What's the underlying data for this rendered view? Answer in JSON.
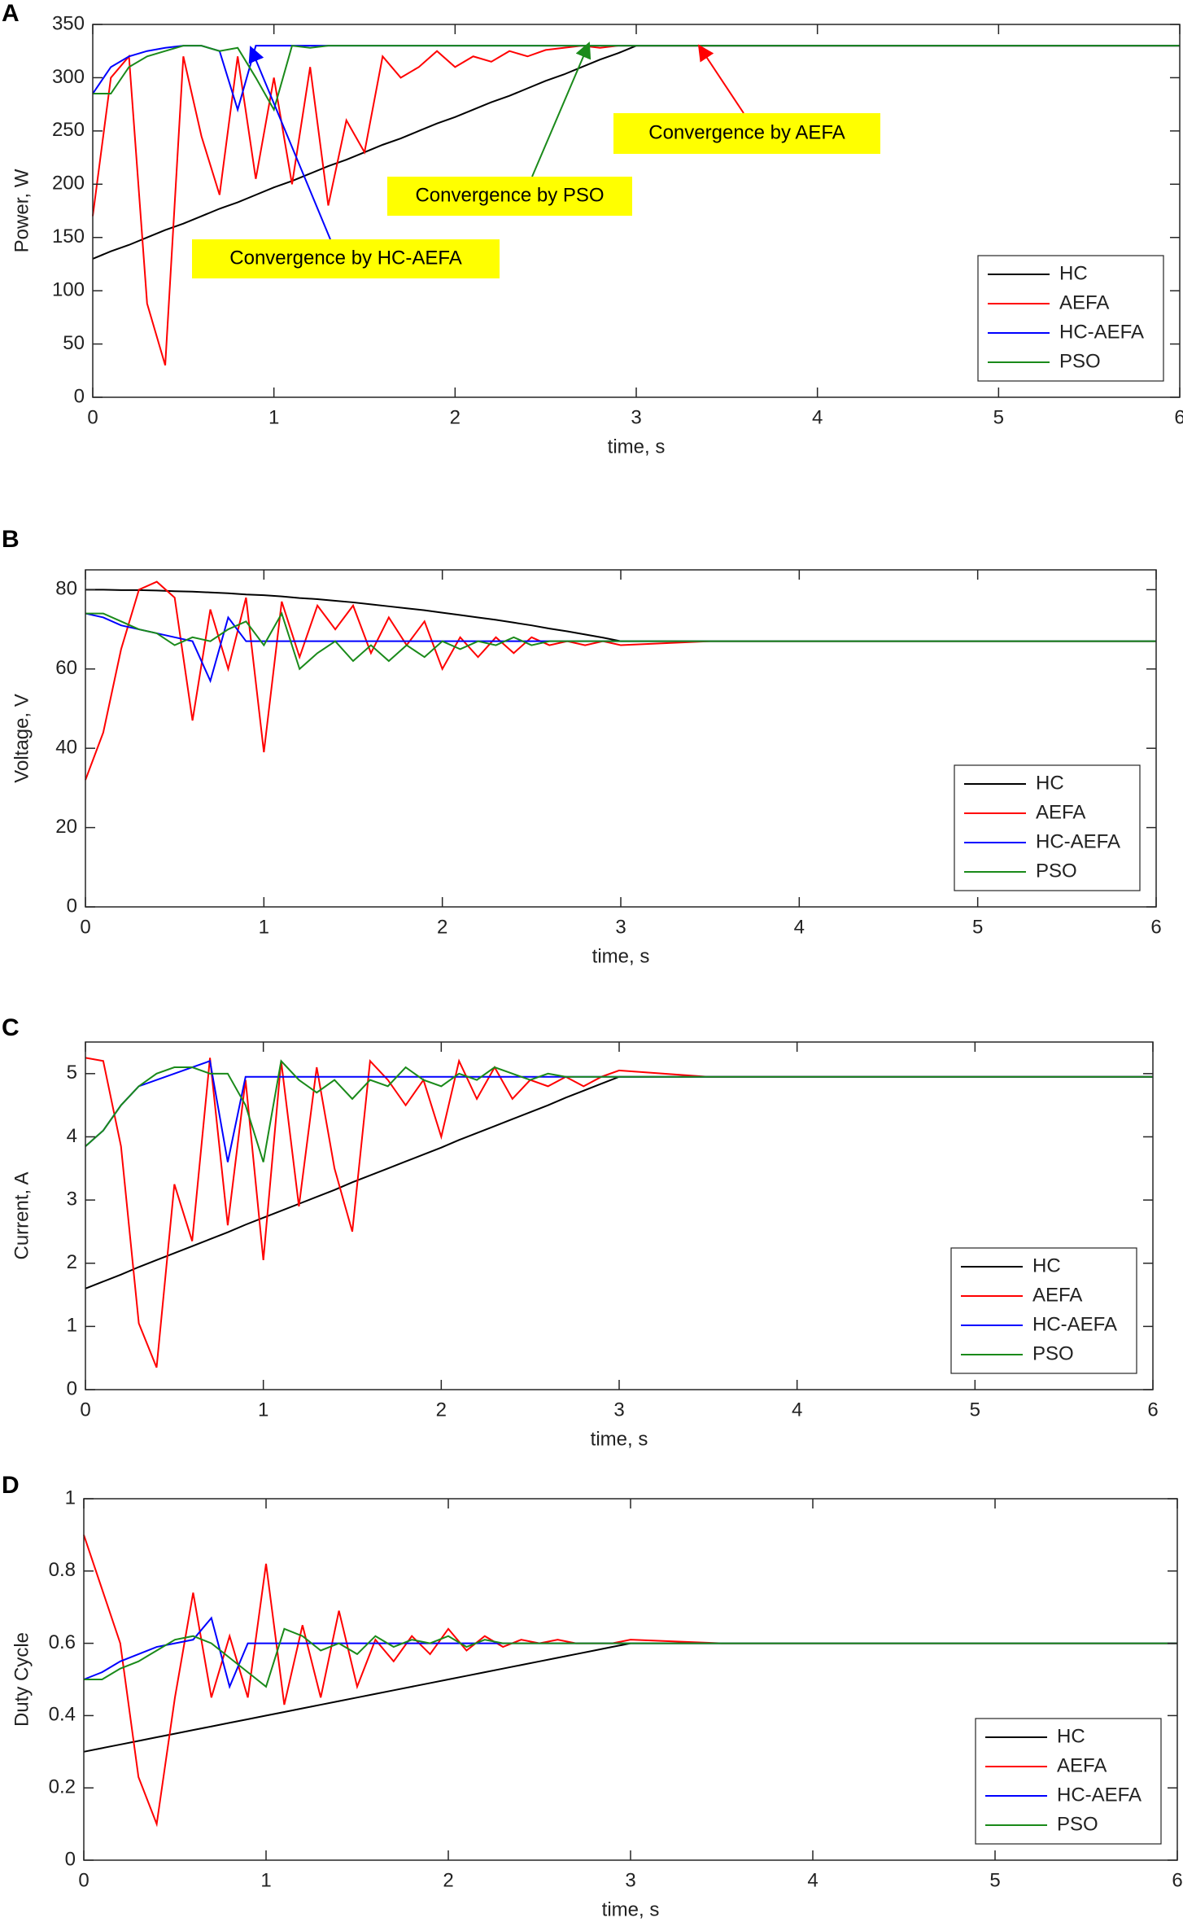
{
  "chart_data": [
    {
      "type": "line",
      "panel": "A",
      "xlabel": "time, s",
      "ylabel": "Power, W",
      "x": [
        0,
        0.1,
        0.2,
        0.3,
        0.4,
        0.5,
        0.6,
        0.7,
        0.8,
        0.9,
        1,
        1.1,
        1.2,
        1.3,
        1.4,
        1.5,
        1.6,
        1.7,
        1.8,
        1.9,
        2,
        2.1,
        2.2,
        2.3,
        2.4,
        2.5,
        2.6,
        2.7,
        2.8,
        2.9,
        3,
        3.5,
        4,
        4.5,
        5,
        5.5,
        6
      ],
      "xlim": [
        0,
        6
      ],
      "xticks": [
        0,
        1,
        2,
        3,
        4,
        5,
        6
      ],
      "ylim": [
        0,
        350
      ],
      "yticks": [
        0,
        50,
        100,
        150,
        200,
        250,
        300,
        350
      ],
      "legend": "lower right",
      "series": [
        {
          "name": "HC",
          "color": "#000000",
          "values": [
            130,
            137,
            143,
            150,
            157,
            163,
            170,
            177,
            183,
            190,
            197,
            203,
            210,
            217,
            223,
            230,
            237,
            243,
            250,
            257,
            263,
            270,
            277,
            283,
            290,
            297,
            303,
            310,
            317,
            323,
            330,
            330,
            330,
            330,
            330,
            330,
            330
          ]
        },
        {
          "name": "AEFA",
          "color": "#ff0000",
          "values": [
            170,
            300,
            320,
            88,
            30,
            320,
            245,
            190,
            320,
            205,
            300,
            200,
            310,
            180,
            260,
            230,
            320,
            300,
            310,
            325,
            310,
            320,
            315,
            325,
            320,
            326,
            328,
            330,
            328,
            330,
            330,
            330,
            330,
            330,
            330,
            330,
            330
          ]
        },
        {
          "name": "HC-AEFA",
          "color": "#0000ff",
          "values": [
            285,
            310,
            320,
            325,
            328,
            330,
            330,
            325,
            270,
            330,
            330,
            330,
            330,
            330,
            330,
            330,
            330,
            330,
            330,
            330,
            330,
            330,
            330,
            330,
            330,
            330,
            330,
            330,
            330,
            330,
            330,
            330,
            330,
            330,
            330,
            330,
            330
          ]
        },
        {
          "name": "PSO",
          "color": "#1a8a1a",
          "values": [
            285,
            285,
            310,
            320,
            325,
            330,
            330,
            325,
            328,
            300,
            270,
            330,
            328,
            330,
            330,
            330,
            330,
            330,
            330,
            330,
            330,
            330,
            330,
            330,
            330,
            330,
            330,
            330,
            330,
            330,
            330,
            330,
            330,
            330,
            330,
            330,
            330
          ]
        }
      ],
      "annotations": [
        "Convergence by AEFA",
        "Convergence by PSO",
        "Convergence by HC-AEFA"
      ]
    },
    {
      "type": "line",
      "panel": "B",
      "xlabel": "time, s",
      "ylabel": "Voltage, V",
      "x": [
        0,
        0.1,
        0.2,
        0.3,
        0.4,
        0.5,
        0.6,
        0.7,
        0.8,
        0.9,
        1,
        1.1,
        1.2,
        1.3,
        1.4,
        1.5,
        1.6,
        1.7,
        1.8,
        1.9,
        2,
        2.1,
        2.2,
        2.3,
        2.4,
        2.5,
        2.6,
        2.7,
        2.8,
        2.9,
        3,
        3.5,
        4,
        4.5,
        5,
        5.5,
        6
      ],
      "xlim": [
        0,
        6
      ],
      "xticks": [
        0,
        1,
        2,
        3,
        4,
        5,
        6
      ],
      "ylim": [
        0,
        85
      ],
      "yticks": [
        0,
        20,
        40,
        60,
        80
      ],
      "legend": "lower right",
      "series": [
        {
          "name": "HC",
          "color": "#000000",
          "values": [
            80,
            80,
            79.9,
            79.9,
            79.8,
            79.6,
            79.5,
            79.3,
            79.1,
            78.8,
            78.6,
            78.3,
            77.9,
            77.6,
            77.2,
            76.8,
            76.3,
            75.8,
            75.3,
            74.8,
            74.2,
            73.6,
            73,
            72.4,
            71.7,
            71,
            70.2,
            69.5,
            68.7,
            67.9,
            67,
            67,
            67,
            67,
            67,
            67,
            67
          ]
        },
        {
          "name": "AEFA",
          "color": "#ff0000",
          "values": [
            32,
            44,
            65,
            80,
            82,
            78,
            47,
            75,
            60,
            78,
            39,
            77,
            63,
            76,
            70,
            76,
            64,
            73,
            66,
            72,
            60,
            68,
            63,
            68,
            64,
            68,
            66,
            67,
            66,
            67,
            66,
            67,
            67,
            67,
            67,
            67,
            67
          ]
        },
        {
          "name": "HC-AEFA",
          "color": "#0000ff",
          "values": [
            74,
            73,
            71,
            70,
            69,
            68,
            67,
            57,
            73,
            67,
            67,
            67,
            67,
            67,
            67,
            67,
            67,
            67,
            67,
            67,
            67,
            67,
            67,
            67,
            67,
            67,
            67,
            67,
            67,
            67,
            67,
            67,
            67,
            67,
            67,
            67,
            67
          ]
        },
        {
          "name": "PSO",
          "color": "#1a8a1a",
          "values": [
            74,
            74,
            72,
            70,
            69,
            66,
            68,
            67,
            70,
            72,
            66,
            74,
            60,
            64,
            67,
            62,
            66,
            62,
            66,
            63,
            67,
            65,
            67,
            66,
            68,
            66,
            67,
            67,
            67,
            67,
            67,
            67,
            67,
            67,
            67,
            67,
            67
          ]
        }
      ]
    },
    {
      "type": "line",
      "panel": "C",
      "xlabel": "time, s",
      "ylabel": "Current, A",
      "x": [
        0,
        0.1,
        0.2,
        0.3,
        0.4,
        0.5,
        0.6,
        0.7,
        0.8,
        0.9,
        1,
        1.1,
        1.2,
        1.3,
        1.4,
        1.5,
        1.6,
        1.7,
        1.8,
        1.9,
        2,
        2.1,
        2.2,
        2.3,
        2.4,
        2.5,
        2.6,
        2.7,
        2.8,
        2.9,
        3,
        3.5,
        4,
        4.5,
        5,
        5.5,
        6
      ],
      "xlim": [
        0,
        6
      ],
      "xticks": [
        0,
        1,
        2,
        3,
        4,
        5,
        6
      ],
      "ylim": [
        0,
        5.5
      ],
      "yticks": [
        0,
        1,
        2,
        3,
        4,
        5
      ],
      "legend": "lower right",
      "series": [
        {
          "name": "HC",
          "color": "#000000",
          "values": [
            1.6,
            1.71,
            1.82,
            1.94,
            2.05,
            2.16,
            2.27,
            2.38,
            2.49,
            2.61,
            2.72,
            2.83,
            2.94,
            3.05,
            3.16,
            3.28,
            3.39,
            3.5,
            3.61,
            3.72,
            3.83,
            3.95,
            4.06,
            4.17,
            4.28,
            4.39,
            4.5,
            4.62,
            4.73,
            4.84,
            4.95,
            4.95,
            4.95,
            4.95,
            4.95,
            4.95,
            4.95
          ]
        },
        {
          "name": "AEFA",
          "color": "#ff0000",
          "values": [
            5.25,
            5.2,
            3.85,
            1.05,
            0.35,
            3.25,
            2.35,
            5.25,
            2.6,
            4.9,
            2.05,
            5.2,
            2.9,
            5.1,
            3.5,
            2.5,
            5.2,
            4.9,
            4.5,
            4.9,
            4,
            5.2,
            4.6,
            5.1,
            4.6,
            4.9,
            4.8,
            4.95,
            4.8,
            4.95,
            5.05,
            4.95,
            4.95,
            4.95,
            4.95,
            4.95,
            4.95
          ]
        },
        {
          "name": "HC-AEFA",
          "color": "#0000ff",
          "values": [
            3.85,
            4.1,
            4.5,
            4.8,
            4.9,
            5,
            5.1,
            5.2,
            3.6,
            4.95,
            4.95,
            4.95,
            4.95,
            4.95,
            4.95,
            4.95,
            4.95,
            4.95,
            4.95,
            4.95,
            4.95,
            4.95,
            4.95,
            4.95,
            4.95,
            4.95,
            4.95,
            4.95,
            4.95,
            4.95,
            4.95,
            4.95,
            4.95,
            4.95,
            4.95,
            4.95,
            4.95
          ]
        },
        {
          "name": "PSO",
          "color": "#1a8a1a",
          "values": [
            3.85,
            4.1,
            4.5,
            4.8,
            5,
            5.1,
            5.1,
            5,
            5,
            4.5,
            3.6,
            5.2,
            4.9,
            4.7,
            4.9,
            4.6,
            4.9,
            4.8,
            5.1,
            4.9,
            4.8,
            5,
            4.9,
            5.1,
            5,
            4.9,
            5,
            4.95,
            4.95,
            4.95,
            4.95,
            4.95,
            4.95,
            4.95,
            4.95,
            4.95,
            4.95
          ]
        }
      ]
    },
    {
      "type": "line",
      "panel": "D",
      "xlabel": "time, s",
      "ylabel": "Duty Cycle",
      "x": [
        0,
        0.1,
        0.2,
        0.3,
        0.4,
        0.5,
        0.6,
        0.7,
        0.8,
        0.9,
        1,
        1.1,
        1.2,
        1.3,
        1.4,
        1.5,
        1.6,
        1.7,
        1.8,
        1.9,
        2,
        2.1,
        2.2,
        2.3,
        2.4,
        2.5,
        2.6,
        2.7,
        2.8,
        2.9,
        3,
        3.5,
        4,
        4.5,
        5,
        5.5,
        6
      ],
      "xlim": [
        0,
        6
      ],
      "xticks": [
        0,
        1,
        2,
        3,
        4,
        5,
        6
      ],
      "ylim": [
        0,
        1
      ],
      "yticks": [
        0,
        0.2,
        0.4,
        0.6,
        0.8,
        1
      ],
      "legend": "lower right",
      "series": [
        {
          "name": "HC",
          "color": "#000000",
          "values": [
            0.3,
            0.31,
            0.32,
            0.33,
            0.34,
            0.35,
            0.36,
            0.37,
            0.38,
            0.39,
            0.4,
            0.41,
            0.42,
            0.43,
            0.44,
            0.45,
            0.46,
            0.47,
            0.48,
            0.49,
            0.5,
            0.51,
            0.52,
            0.53,
            0.54,
            0.55,
            0.56,
            0.57,
            0.58,
            0.59,
            0.6,
            0.6,
            0.6,
            0.6,
            0.6,
            0.6,
            0.6
          ]
        },
        {
          "name": "AEFA",
          "color": "#ff0000",
          "values": [
            0.9,
            0.75,
            0.6,
            0.23,
            0.1,
            0.45,
            0.74,
            0.45,
            0.62,
            0.45,
            0.82,
            0.43,
            0.65,
            0.45,
            0.69,
            0.48,
            0.61,
            0.55,
            0.62,
            0.57,
            0.64,
            0.58,
            0.62,
            0.59,
            0.61,
            0.6,
            0.61,
            0.6,
            0.6,
            0.6,
            0.61,
            0.6,
            0.6,
            0.6,
            0.6,
            0.6,
            0.6
          ]
        },
        {
          "name": "HC-AEFA",
          "color": "#0000ff",
          "values": [
            0.5,
            0.52,
            0.55,
            0.57,
            0.59,
            0.6,
            0.61,
            0.67,
            0.48,
            0.6,
            0.6,
            0.6,
            0.6,
            0.6,
            0.6,
            0.6,
            0.6,
            0.6,
            0.6,
            0.6,
            0.6,
            0.6,
            0.6,
            0.6,
            0.6,
            0.6,
            0.6,
            0.6,
            0.6,
            0.6,
            0.6,
            0.6,
            0.6,
            0.6,
            0.6,
            0.6,
            0.6
          ]
        },
        {
          "name": "PSO",
          "color": "#1a8a1a",
          "values": [
            0.5,
            0.5,
            0.53,
            0.55,
            0.58,
            0.61,
            0.62,
            0.6,
            0.56,
            0.52,
            0.48,
            0.64,
            0.62,
            0.58,
            0.6,
            0.57,
            0.62,
            0.59,
            0.61,
            0.6,
            0.62,
            0.59,
            0.61,
            0.6,
            0.6,
            0.6,
            0.6,
            0.6,
            0.6,
            0.6,
            0.6,
            0.6,
            0.6,
            0.6,
            0.6,
            0.6,
            0.6
          ]
        }
      ]
    }
  ]
}
